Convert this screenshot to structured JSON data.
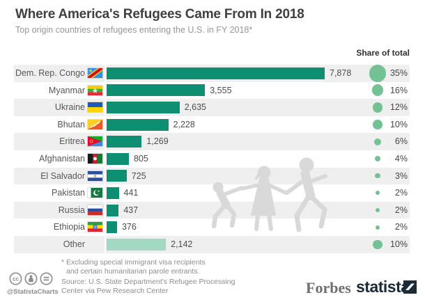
{
  "header": {
    "title": "Where America's Refugees Came From In 2018",
    "subtitle": "Top origin countries of refugees entering the U.S. in FY 2018*",
    "share_column_label": "Share of total"
  },
  "chart_data": {
    "type": "bar",
    "title": "Where America's Refugees Came From In 2018",
    "subtitle": "Top origin countries of refugees entering the U.S. in FY 2018*",
    "orientation": "horizontal",
    "max_value": 7878,
    "xlim": [
      0,
      7878
    ],
    "colors": {
      "bar": "#0e8f72",
      "bar_muted": "#a3d9c3",
      "bubble": "#74c294"
    },
    "categories": [
      "Dem. Rep. Congo",
      "Myanmar",
      "Ukraine",
      "Bhutan",
      "Eritrea",
      "Afghanistan",
      "El Salvador",
      "Pakistan",
      "Russia",
      "Ethiopia",
      "Other"
    ],
    "rows": [
      {
        "label": "Dem. Rep. Congo",
        "flag": "cd",
        "value": 7878,
        "value_label": "7,878",
        "share_pct": 35,
        "share_label": "35%",
        "muted": false
      },
      {
        "label": "Myanmar",
        "flag": "mm",
        "value": 3555,
        "value_label": "3,555",
        "share_pct": 16,
        "share_label": "16%",
        "muted": false
      },
      {
        "label": "Ukraine",
        "flag": "ua",
        "value": 2635,
        "value_label": "2,635",
        "share_pct": 12,
        "share_label": "12%",
        "muted": false
      },
      {
        "label": "Bhutan",
        "flag": "bt",
        "value": 2228,
        "value_label": "2,228",
        "share_pct": 10,
        "share_label": "10%",
        "muted": false
      },
      {
        "label": "Eritrea",
        "flag": "er",
        "value": 1269,
        "value_label": "1,269",
        "share_pct": 6,
        "share_label": "6%",
        "muted": false
      },
      {
        "label": "Afghanistan",
        "flag": "af",
        "value": 805,
        "value_label": "805",
        "share_pct": 4,
        "share_label": "4%",
        "muted": false
      },
      {
        "label": "El Salvador",
        "flag": "sv",
        "value": 725,
        "value_label": "725",
        "share_pct": 3,
        "share_label": "3%",
        "muted": false
      },
      {
        "label": "Pakistan",
        "flag": "pk",
        "value": 441,
        "value_label": "441",
        "share_pct": 2,
        "share_label": "2%",
        "muted": false
      },
      {
        "label": "Russia",
        "flag": "ru",
        "value": 437,
        "value_label": "437",
        "share_pct": 2,
        "share_label": "2%",
        "muted": false
      },
      {
        "label": "Ethiopia",
        "flag": "et",
        "value": 376,
        "value_label": "376",
        "share_pct": 2,
        "share_label": "2%",
        "muted": false
      },
      {
        "label": "Other",
        "flag": null,
        "value": 2142,
        "value_label": "2,142",
        "share_pct": 10,
        "share_label": "10%",
        "muted": true
      }
    ]
  },
  "footer": {
    "footnote_line1": "* Excluding special immigrant visa recipients",
    "footnote_line2": "and certain humanitarian parole entrants.",
    "source_line1": "Source: U.S. State Department's Refugee Processing",
    "source_line2": "Center via Pew Research Center",
    "credit_handle": "@StatistaCharts",
    "license_icons": [
      "cc-icon",
      "attribution-icon",
      "no-derivatives-icon"
    ],
    "brands": {
      "forbes": "Forbes",
      "statista": "statista"
    }
  }
}
